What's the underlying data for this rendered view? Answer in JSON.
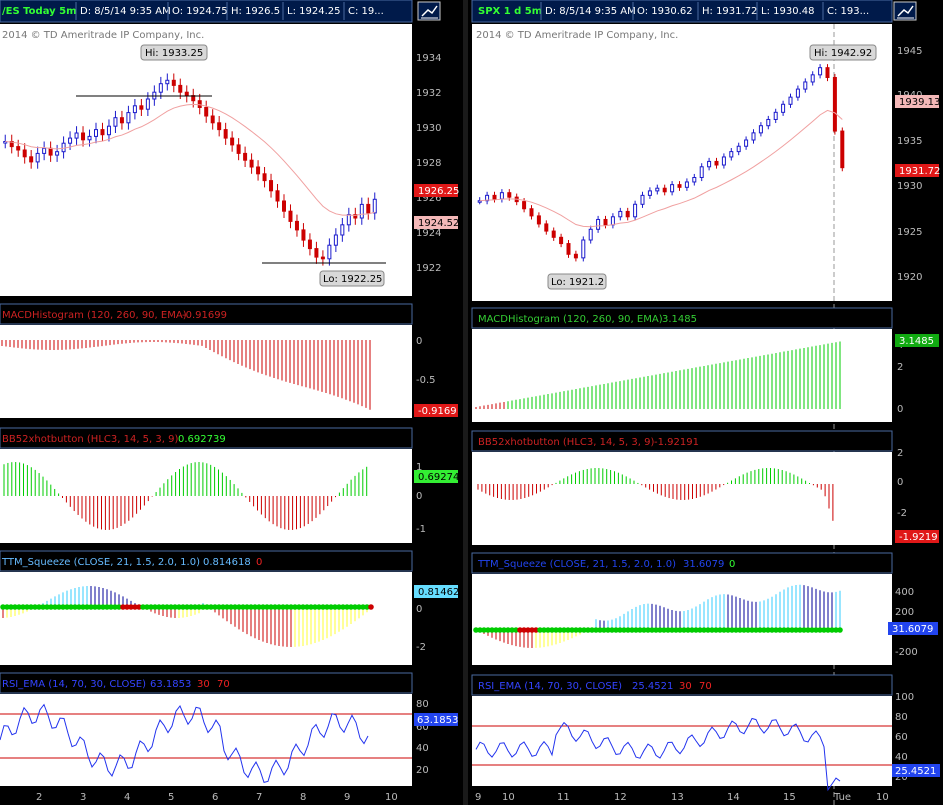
{
  "colors": {
    "up": "#1a1acc",
    "down": "#cc0000",
    "ema": "#f0a0a0",
    "green": "#00cc00",
    "red": "#cc0000",
    "cyan": "#33ccff",
    "navy": "#00009a",
    "yellow": "#ffff33",
    "rsi": "#2233ee",
    "panel_bg": "#ffffff",
    "hdr_bg": "#001a4a"
  },
  "left": {
    "header": {
      "symbol": "/ES Today 5m",
      "date": "D: 8/5/14 9:35 AM",
      "open": "O: 1924.75",
      "high": "H: 1926.5",
      "low": "L: 1924.25",
      "close": "C: 19..."
    },
    "copyright": "2014 © TD Ameritrade IP Company, Inc.",
    "price_ticks": [
      "1934",
      "1932",
      "1930",
      "1928",
      "1926",
      "1924",
      "1922"
    ],
    "price_badge_last": "1926.25",
    "price_badge_ema": "1924.52",
    "hi_label": "Hi: 1933.25",
    "lo_label": "Lo: 1922.25",
    "macd": {
      "title": "MACDHistogram (120, 260, 90, EMA)",
      "value": "-0.91699",
      "badge": "-0.9169",
      "ticks": [
        "0",
        "-0.5",
        "-1"
      ]
    },
    "bb": {
      "title": "BB52xhotbutton (HLC3, 14, 5, 3, 9)",
      "value": "0.692739",
      "badge": "0.69274",
      "ticks": [
        "1",
        "0",
        "-1"
      ]
    },
    "ttm": {
      "title": "TTM_Squeeze (CLOSE, 21, 1.5, 2.0, 1.0)",
      "value": "0.814618",
      "flag": "0",
      "badge": "0.81462",
      "ticks": [
        "0",
        "-2"
      ]
    },
    "rsi": {
      "title": "RSI_EMA (14, 70, 30, CLOSE)",
      "value": "63.1853",
      "ob": "30",
      "os": "70",
      "badge": "63.1853",
      "ticks": [
        "80",
        "60",
        "40",
        "20"
      ]
    },
    "x_ticks": [
      "2",
      "3",
      "4",
      "5",
      "6",
      "7",
      "8",
      "9",
      "10"
    ]
  },
  "right": {
    "header": {
      "symbol": "SPX 1 d 5m",
      "date": "D: 8/5/14 9:35 AM",
      "open": "O: 1930.62",
      "high": "H: 1931.72",
      "low": "L: 1930.48",
      "close": "C: 193..."
    },
    "copyright": "2014 © TD Ameritrade IP Company, Inc.",
    "price_ticks": [
      "1945",
      "1940",
      "1935",
      "1930",
      "1925",
      "1920"
    ],
    "price_badge_ema": "1939.13",
    "price_badge_last": "1931.72",
    "hi_label": "Hi: 1942.92",
    "lo_label": "Lo: 1921.2",
    "macd": {
      "title": "MACDHistogram (120, 260, 90, EMA)",
      "value": "3.1485",
      "badge": "3.1485",
      "ticks": [
        "4",
        "2",
        "0"
      ]
    },
    "bb": {
      "title": "BB52xhotbutton (HLC3, 14, 5, 3, 9)",
      "value": "-1.92191",
      "badge": "-1.9219",
      "ticks": [
        "2",
        "0",
        "-2"
      ]
    },
    "ttm": {
      "title": "TTM_Squeeze (CLOSE, 21, 1.5, 2.0, 1.0)",
      "value": "31.6079",
      "flag": "0",
      "badge": "31.6079",
      "ticks": [
        "400",
        "200",
        "0",
        "-200"
      ]
    },
    "rsi": {
      "title": "RSI_EMA (14, 70, 30, CLOSE)",
      "value": "25.4521",
      "ob": "30",
      "os": "70",
      "badge": "25.4521",
      "ticks": [
        "100",
        "80",
        "60",
        "40",
        "20"
      ]
    },
    "x_ticks": [
      "9",
      "10",
      "11",
      "12",
      "13",
      "14",
      "15",
      "Tue",
      "10"
    ]
  },
  "series": {
    "left_closes": [
      1929.5,
      1929.2,
      1929.0,
      1928.6,
      1928.3,
      1928.8,
      1929.1,
      1928.7,
      1928.9,
      1929.4,
      1929.7,
      1930.0,
      1929.6,
      1929.8,
      1930.2,
      1929.9,
      1930.4,
      1930.9,
      1930.6,
      1931.2,
      1931.6,
      1931.4,
      1932.0,
      1932.4,
      1932.9,
      1933.1,
      1932.8,
      1932.4,
      1932.2,
      1931.9,
      1931.5,
      1931.0,
      1930.6,
      1930.2,
      1929.7,
      1929.3,
      1928.8,
      1928.4,
      1928.0,
      1927.6,
      1927.2,
      1926.6,
      1926.0,
      1925.4,
      1924.8,
      1924.3,
      1923.7,
      1923.2,
      1922.7,
      1922.6,
      1923.4,
      1924.0,
      1924.6,
      1925.2,
      1925.0,
      1925.8,
      1925.3,
      1926.1
    ],
    "right_closes": [
      1928.0,
      1928.6,
      1928.2,
      1928.9,
      1928.4,
      1927.9,
      1927.1,
      1926.3,
      1925.4,
      1924.6,
      1923.9,
      1923.2,
      1922.0,
      1921.6,
      1923.6,
      1924.8,
      1925.9,
      1925.3,
      1926.2,
      1926.8,
      1926.2,
      1927.6,
      1928.6,
      1929.1,
      1929.4,
      1929.0,
      1929.8,
      1929.5,
      1930.1,
      1930.6,
      1931.8,
      1932.4,
      1932.0,
      1932.9,
      1933.5,
      1934.1,
      1934.8,
      1935.6,
      1936.4,
      1937.1,
      1937.9,
      1938.8,
      1939.6,
      1940.5,
      1941.3,
      1942.1,
      1942.9,
      1941.8,
      1935.8,
      1931.7
    ]
  }
}
